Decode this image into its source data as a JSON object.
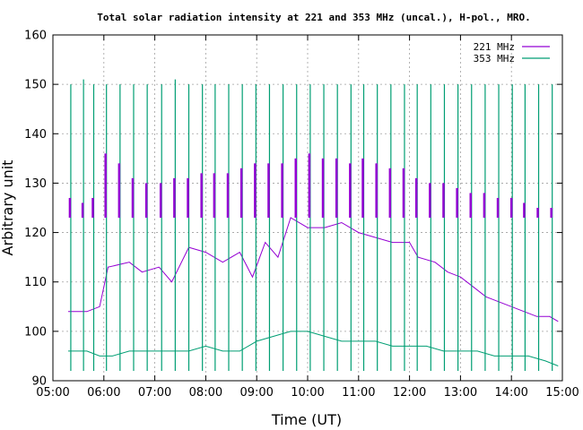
{
  "chart_data": {
    "type": "line",
    "title": "Total solar radiation intensity at 221 and 353 MHz (uncal.), H-pol., MRO.",
    "xlabel": "Time (UT)",
    "ylabel": "Arbitrary unit",
    "xlim": [
      "05:00",
      "15:00"
    ],
    "ylim": [
      90,
      160
    ],
    "x_ticks": [
      "05:00",
      "06:00",
      "07:00",
      "08:00",
      "09:00",
      "10:00",
      "11:00",
      "12:00",
      "13:00",
      "14:00",
      "15:00"
    ],
    "y_ticks": [
      90,
      100,
      110,
      120,
      130,
      140,
      150,
      160
    ],
    "grid": true,
    "legend_position": "top-right",
    "series": [
      {
        "name": "221 MHz",
        "color": "#9400d3",
        "x": [
          "05:18",
          "05:40",
          "05:55",
          "06:05",
          "06:30",
          "06:45",
          "07:05",
          "07:20",
          "07:40",
          "08:00",
          "08:20",
          "08:40",
          "08:55",
          "09:10",
          "09:25",
          "09:40",
          "10:00",
          "10:20",
          "10:40",
          "11:00",
          "11:20",
          "11:40",
          "12:00",
          "12:10",
          "12:30",
          "12:45",
          "13:00",
          "13:15",
          "13:30",
          "13:45",
          "14:00",
          "14:15",
          "14:30",
          "14:45",
          "14:55"
        ],
        "values": [
          104,
          104,
          105,
          113,
          114,
          112,
          113,
          110,
          117,
          116,
          114,
          116,
          111,
          118,
          115,
          123,
          121,
          121,
          122,
          120,
          119,
          118,
          118,
          115,
          114,
          112,
          111,
          109,
          107,
          106,
          105,
          104,
          103,
          103,
          102
        ]
      },
      {
        "name": "353 MHz",
        "color": "#009e73",
        "x": [
          "05:18",
          "05:40",
          "05:55",
          "06:10",
          "06:30",
          "07:00",
          "07:20",
          "07:40",
          "08:00",
          "08:20",
          "08:40",
          "09:00",
          "09:20",
          "09:40",
          "10:00",
          "10:20",
          "10:40",
          "11:00",
          "11:20",
          "11:40",
          "12:00",
          "12:20",
          "12:40",
          "13:00",
          "13:20",
          "13:40",
          "14:00",
          "14:20",
          "14:40",
          "14:55"
        ],
        "values": [
          96,
          96,
          95,
          95,
          96,
          96,
          96,
          96,
          97,
          96,
          96,
          98,
          99,
          100,
          100,
          99,
          98,
          98,
          98,
          97,
          97,
          97,
          96,
          96,
          96,
          95,
          95,
          95,
          94,
          93
        ]
      }
    ],
    "calibration_spikes": {
      "times": [
        "05:20",
        "05:35",
        "05:47",
        "06:02",
        "06:18",
        "06:34",
        "06:50",
        "07:07",
        "07:23",
        "07:39",
        "07:55",
        "08:10",
        "08:26",
        "08:42",
        "08:58",
        "09:14",
        "09:30",
        "09:46",
        "10:02",
        "10:18",
        "10:34",
        "10:50",
        "11:05",
        "11:21",
        "11:37",
        "11:53",
        "12:08",
        "12:24",
        "12:40",
        "12:56",
        "13:12",
        "13:28",
        "13:44",
        "14:00",
        "14:15",
        "14:31",
        "14:47"
      ],
      "mhz221_top": [
        127,
        126,
        127,
        136,
        134,
        131,
        130,
        130,
        131,
        131,
        132,
        132,
        132,
        133,
        134,
        134,
        134,
        135,
        136,
        135,
        135,
        134,
        135,
        134,
        133,
        133,
        131,
        130,
        130,
        129,
        128,
        128,
        127,
        127,
        126,
        125,
        125
      ],
      "mhz221_bottom": [
        123,
        123,
        123,
        123,
        123,
        123,
        123,
        123,
        123,
        123,
        123,
        123,
        123,
        123,
        123,
        123,
        123,
        123,
        123,
        123,
        123,
        123,
        123,
        123,
        123,
        123,
        123,
        123,
        123,
        123,
        123,
        123,
        123,
        123,
        123,
        123,
        123
      ],
      "mhz353_top": [
        150,
        151,
        150,
        150,
        150,
        150,
        150,
        150,
        151,
        150,
        150,
        150,
        150,
        150,
        150,
        150,
        150,
        150,
        150,
        150,
        150,
        150,
        150,
        150,
        150,
        150,
        150,
        150,
        150,
        150,
        150,
        150,
        150,
        150,
        150,
        150,
        150
      ]
    }
  }
}
